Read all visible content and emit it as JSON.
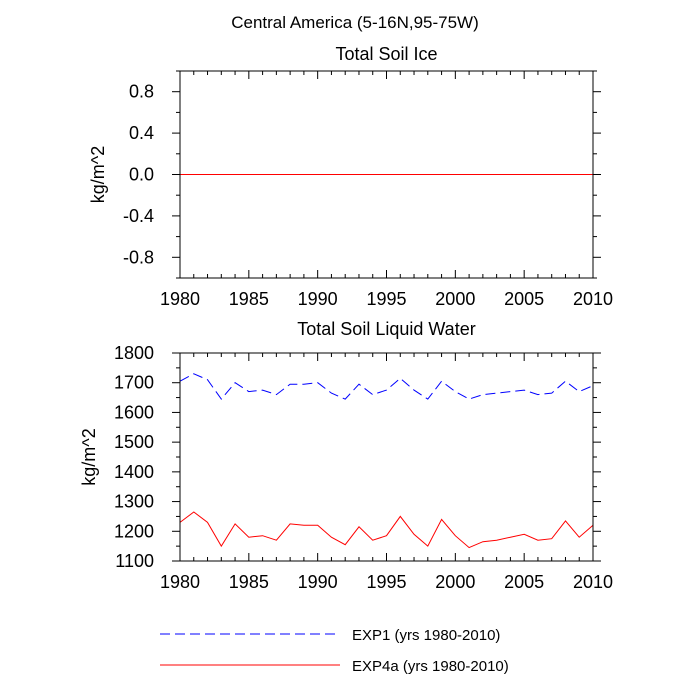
{
  "figure": {
    "title": "Central America (5-16N,95-75W)"
  },
  "legend": {
    "entries": [
      {
        "label": "EXP1 (yrs 1980-2010)",
        "color": "#0000ff",
        "dash": "dashed"
      },
      {
        "label": "EXP4a (yrs 1980-2010)",
        "color": "#ff0000",
        "dash": "solid"
      }
    ]
  },
  "chart_data": [
    {
      "type": "line",
      "title": "Total Soil Ice",
      "xlabel": "",
      "ylabel": "kg/m^2",
      "xlim": [
        1980,
        2010
      ],
      "ylim": [
        -1.0,
        1.0
      ],
      "xticks": [
        1980,
        1985,
        1990,
        1995,
        2000,
        2005,
        2010
      ],
      "xtick_labels": [
        "1980",
        "1985",
        "1990",
        "1995",
        "2000",
        "2005",
        "2010"
      ],
      "yticks": [
        0.8,
        0.4,
        0.0,
        -0.4,
        -0.8
      ],
      "ytick_labels": [
        "0.8",
        "0.4",
        "0.0",
        "-0.4",
        "-0.8"
      ],
      "x": [
        1980,
        1981,
        1982,
        1983,
        1984,
        1985,
        1986,
        1987,
        1988,
        1989,
        1990,
        1991,
        1992,
        1993,
        1994,
        1995,
        1996,
        1997,
        1998,
        1999,
        2000,
        2001,
        2002,
        2003,
        2004,
        2005,
        2006,
        2007,
        2008,
        2009,
        2010
      ],
      "series": [
        {
          "name": "EXP1 (yrs 1980-2010)",
          "color": "#0000ff",
          "dash": "dashed",
          "values": [
            0,
            0,
            0,
            0,
            0,
            0,
            0,
            0,
            0,
            0,
            0,
            0,
            0,
            0,
            0,
            0,
            0,
            0,
            0,
            0,
            0,
            0,
            0,
            0,
            0,
            0,
            0,
            0,
            0,
            0,
            0
          ]
        },
        {
          "name": "EXP4a (yrs 1980-2010)",
          "color": "#ff0000",
          "dash": "solid",
          "values": [
            0,
            0,
            0,
            0,
            0,
            0,
            0,
            0,
            0,
            0,
            0,
            0,
            0,
            0,
            0,
            0,
            0,
            0,
            0,
            0,
            0,
            0,
            0,
            0,
            0,
            0,
            0,
            0,
            0,
            0,
            0
          ]
        }
      ]
    },
    {
      "type": "line",
      "title": "Total Soil Liquid Water",
      "xlabel": "",
      "ylabel": "kg/m^2",
      "xlim": [
        1980,
        2010
      ],
      "ylim": [
        1100,
        1800
      ],
      "xticks": [
        1980,
        1985,
        1990,
        1995,
        2000,
        2005,
        2010
      ],
      "xtick_labels": [
        "1980",
        "1985",
        "1990",
        "1995",
        "2000",
        "2005",
        "2010"
      ],
      "yticks": [
        1800,
        1700,
        1600,
        1500,
        1400,
        1300,
        1200,
        1100
      ],
      "ytick_labels": [
        "1800",
        "1700",
        "1600",
        "1500",
        "1400",
        "1300",
        "1200",
        "1100"
      ],
      "x": [
        1980,
        1981,
        1982,
        1983,
        1984,
        1985,
        1986,
        1987,
        1988,
        1989,
        1990,
        1991,
        1992,
        1993,
        1994,
        1995,
        1996,
        1997,
        1998,
        1999,
        2000,
        2001,
        2002,
        2003,
        2004,
        2005,
        2006,
        2007,
        2008,
        2009,
        2010
      ],
      "series": [
        {
          "name": "EXP1 (yrs 1980-2010)",
          "color": "#0000ff",
          "dash": "dashed",
          "values": [
            1705,
            1730,
            1710,
            1645,
            1700,
            1670,
            1675,
            1660,
            1695,
            1695,
            1700,
            1665,
            1645,
            1695,
            1660,
            1675,
            1715,
            1675,
            1645,
            1705,
            1670,
            1645,
            1660,
            1665,
            1670,
            1675,
            1660,
            1665,
            1705,
            1670,
            1690
          ]
        },
        {
          "name": "EXP4a (yrs 1980-2010)",
          "color": "#ff0000",
          "dash": "solid",
          "values": [
            1230,
            1265,
            1230,
            1150,
            1225,
            1180,
            1185,
            1170,
            1225,
            1220,
            1220,
            1180,
            1155,
            1215,
            1170,
            1185,
            1250,
            1190,
            1150,
            1240,
            1185,
            1145,
            1165,
            1170,
            1180,
            1190,
            1170,
            1175,
            1235,
            1180,
            1220
          ]
        }
      ]
    }
  ]
}
